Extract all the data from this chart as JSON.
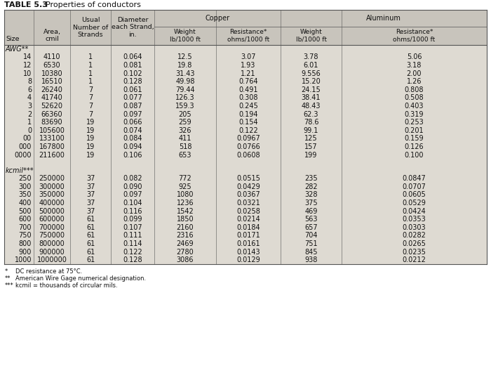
{
  "title_bold": "TABLE 5.3",
  "title_normal": "  Properties of conductors",
  "awg_label": "AWG**",
  "kcmil_label": "kcmil***",
  "awg_rows": [
    [
      "14",
      "4110",
      "1",
      "0.064",
      "12.5",
      "3.07",
      "3.78",
      "5.06"
    ],
    [
      "12",
      "6530",
      "1",
      "0.081",
      "19.8",
      "1.93",
      "6.01",
      "3.18"
    ],
    [
      "10",
      "10380",
      "1",
      "0.102",
      "31.43",
      "1.21",
      "9.556",
      "2.00"
    ],
    [
      "8",
      "16510",
      "1",
      "0.128",
      "49.98",
      "0.764",
      "15.20",
      "1.26"
    ],
    [
      "6",
      "26240",
      "7",
      "0.061",
      "79.44",
      "0.491",
      "24.15",
      "0.808"
    ],
    [
      "4",
      "41740",
      "7",
      "0.077",
      "126.3",
      "0.308",
      "38.41",
      "0.508"
    ],
    [
      "3",
      "52620",
      "7",
      "0.087",
      "159.3",
      "0.245",
      "48.43",
      "0.403"
    ],
    [
      "2",
      "66360",
      "7",
      "0.097",
      "205",
      "0.194",
      "62.3",
      "0.319"
    ],
    [
      "1",
      "83690",
      "19",
      "0.066",
      "259",
      "0.154",
      "78.6",
      "0.253"
    ],
    [
      "0",
      "105600",
      "19",
      "0.074",
      "326",
      "0.122",
      "99.1",
      "0.201"
    ],
    [
      "00",
      "133100",
      "19",
      "0.084",
      "411",
      "0.0967",
      "125",
      "0.159"
    ],
    [
      "000",
      "167800",
      "19",
      "0.094",
      "518",
      "0.0766",
      "157",
      "0.126"
    ],
    [
      "0000",
      "211600",
      "19",
      "0.106",
      "653",
      "0.0608",
      "199",
      "0.100"
    ]
  ],
  "kcmil_rows": [
    [
      "250",
      "250000",
      "37",
      "0.082",
      "772",
      "0.0515",
      "235",
      "0.0847"
    ],
    [
      "300",
      "300000",
      "37",
      "0.090",
      "925",
      "0.0429",
      "282",
      "0.0707"
    ],
    [
      "350",
      "350000",
      "37",
      "0.097",
      "1080",
      "0.0367",
      "328",
      "0.0605"
    ],
    [
      "400",
      "400000",
      "37",
      "0.104",
      "1236",
      "0.0321",
      "375",
      "0.0529"
    ],
    [
      "500",
      "500000",
      "37",
      "0.116",
      "1542",
      "0.0258",
      "469",
      "0.0424"
    ],
    [
      "600",
      "600000",
      "61",
      "0.099",
      "1850",
      "0.0214",
      "563",
      "0.0353"
    ],
    [
      "700",
      "700000",
      "61",
      "0.107",
      "2160",
      "0.0184",
      "657",
      "0.0303"
    ],
    [
      "750",
      "750000",
      "61",
      "0.111",
      "2316",
      "0.0171",
      "704",
      "0.0282"
    ],
    [
      "800",
      "800000",
      "61",
      "0.114",
      "2469",
      "0.0161",
      "751",
      "0.0265"
    ],
    [
      "900",
      "900000",
      "61",
      "0.122",
      "2780",
      "0.0143",
      "845",
      "0.0235"
    ],
    [
      "1000",
      "1000000",
      "61",
      "0.128",
      "3086",
      "0.0129",
      "938",
      "0.0212"
    ]
  ],
  "footnotes": [
    [
      "*",
      "DC resistance at 75°C."
    ],
    [
      "**",
      "American Wire Gage numerical designation."
    ],
    [
      "***",
      "kcmil = thousands of circular mils."
    ]
  ],
  "table_bg": "#e8e4dc",
  "header_bg": "#c8c4bc",
  "body_bg": "#dedad2",
  "line_color": "#555555",
  "text_color": "#111111"
}
